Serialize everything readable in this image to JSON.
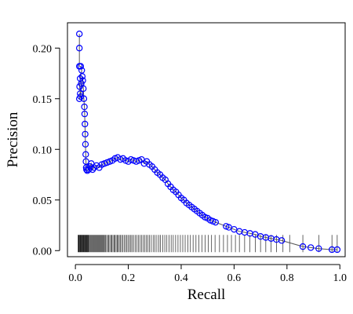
{
  "chart_data": {
    "type": "scatter",
    "title": "",
    "xlabel": "Recall",
    "ylabel": "Precision",
    "xlim": [
      -0.03,
      1.02
    ],
    "ylim": [
      -0.006,
      0.225
    ],
    "xticks": [
      0.0,
      0.2,
      0.4,
      0.6,
      0.8,
      1.0
    ],
    "xtick_labels": [
      "0.0",
      "0.2",
      "0.4",
      "0.6",
      "0.8",
      "1.0"
    ],
    "yticks": [
      0.0,
      0.05,
      0.1,
      0.15,
      0.2
    ],
    "ytick_labels": [
      "0.00",
      "0.05",
      "0.10",
      "0.15",
      "0.20"
    ],
    "grid": false,
    "legend": "none",
    "series": [
      {
        "values": [
          [
            0.015,
            0.214
          ],
          [
            0.015,
            0.2
          ],
          [
            0.015,
            0.182
          ],
          [
            0.02,
            0.182
          ],
          [
            0.024,
            0.178
          ],
          [
            0.018,
            0.17
          ],
          [
            0.016,
            0.162
          ],
          [
            0.018,
            0.155
          ],
          [
            0.015,
            0.15
          ],
          [
            0.02,
            0.152
          ],
          [
            0.022,
            0.165
          ],
          [
            0.026,
            0.172
          ],
          [
            0.028,
            0.168
          ],
          [
            0.03,
            0.16
          ],
          [
            0.032,
            0.15
          ],
          [
            0.034,
            0.142
          ],
          [
            0.035,
            0.135
          ],
          [
            0.036,
            0.125
          ],
          [
            0.037,
            0.115
          ],
          [
            0.038,
            0.105
          ],
          [
            0.039,
            0.095
          ],
          [
            0.04,
            0.088
          ],
          [
            0.041,
            0.082
          ],
          [
            0.042,
            0.08
          ],
          [
            0.045,
            0.079
          ],
          [
            0.05,
            0.08
          ],
          [
            0.055,
            0.083
          ],
          [
            0.06,
            0.086
          ],
          [
            0.065,
            0.08
          ],
          [
            0.07,
            0.082
          ],
          [
            0.08,
            0.084
          ],
          [
            0.09,
            0.082
          ],
          [
            0.1,
            0.085
          ],
          [
            0.11,
            0.086
          ],
          [
            0.12,
            0.087
          ],
          [
            0.13,
            0.088
          ],
          [
            0.14,
            0.089
          ],
          [
            0.15,
            0.091
          ],
          [
            0.16,
            0.092
          ],
          [
            0.17,
            0.09
          ],
          [
            0.18,
            0.091
          ],
          [
            0.19,
            0.089
          ],
          [
            0.2,
            0.088
          ],
          [
            0.21,
            0.09
          ],
          [
            0.22,
            0.089
          ],
          [
            0.23,
            0.088
          ],
          [
            0.24,
            0.089
          ],
          [
            0.25,
            0.09
          ],
          [
            0.26,
            0.086
          ],
          [
            0.27,
            0.088
          ],
          [
            0.28,
            0.085
          ],
          [
            0.29,
            0.083
          ],
          [
            0.3,
            0.08
          ],
          [
            0.31,
            0.077
          ],
          [
            0.32,
            0.075
          ],
          [
            0.33,
            0.072
          ],
          [
            0.34,
            0.07
          ],
          [
            0.35,
            0.066
          ],
          [
            0.36,
            0.063
          ],
          [
            0.37,
            0.06
          ],
          [
            0.38,
            0.058
          ],
          [
            0.39,
            0.055
          ],
          [
            0.4,
            0.052
          ],
          [
            0.41,
            0.05
          ],
          [
            0.42,
            0.047
          ],
          [
            0.43,
            0.045
          ],
          [
            0.44,
            0.043
          ],
          [
            0.45,
            0.041
          ],
          [
            0.46,
            0.039
          ],
          [
            0.47,
            0.037
          ],
          [
            0.48,
            0.035
          ],
          [
            0.49,
            0.033
          ],
          [
            0.5,
            0.032
          ],
          [
            0.51,
            0.03
          ],
          [
            0.52,
            0.029
          ],
          [
            0.53,
            0.028
          ],
          [
            0.57,
            0.024
          ],
          [
            0.58,
            0.023
          ],
          [
            0.6,
            0.021
          ],
          [
            0.62,
            0.019
          ],
          [
            0.64,
            0.018
          ],
          [
            0.66,
            0.017
          ],
          [
            0.68,
            0.016
          ],
          [
            0.7,
            0.014
          ],
          [
            0.72,
            0.013
          ],
          [
            0.74,
            0.012
          ],
          [
            0.76,
            0.011
          ],
          [
            0.78,
            0.01
          ],
          [
            0.86,
            0.004
          ],
          [
            0.89,
            0.003
          ],
          [
            0.92,
            0.002
          ],
          [
            0.97,
            0.001
          ],
          [
            0.99,
            0.001
          ]
        ]
      }
    ],
    "rug_x": [
      0.01,
      0.012,
      0.014,
      0.016,
      0.018,
      0.02,
      0.022,
      0.024,
      0.026,
      0.028,
      0.03,
      0.032,
      0.034,
      0.036,
      0.038,
      0.04,
      0.042,
      0.044,
      0.046,
      0.048,
      0.05,
      0.053,
      0.056,
      0.059,
      0.062,
      0.065,
      0.068,
      0.071,
      0.074,
      0.077,
      0.08,
      0.083,
      0.086,
      0.089,
      0.092,
      0.095,
      0.098,
      0.101,
      0.104,
      0.107,
      0.11,
      0.114,
      0.118,
      0.122,
      0.126,
      0.13,
      0.134,
      0.138,
      0.142,
      0.146,
      0.15,
      0.154,
      0.158,
      0.162,
      0.166,
      0.17,
      0.175,
      0.18,
      0.185,
      0.19,
      0.195,
      0.2,
      0.205,
      0.21,
      0.215,
      0.22,
      0.226,
      0.232,
      0.238,
      0.244,
      0.25,
      0.256,
      0.262,
      0.268,
      0.274,
      0.28,
      0.287,
      0.294,
      0.301,
      0.308,
      0.315,
      0.322,
      0.33,
      0.338,
      0.346,
      0.354,
      0.362,
      0.37,
      0.379,
      0.388,
      0.397,
      0.406,
      0.415,
      0.425,
      0.435,
      0.445,
      0.456,
      0.467,
      0.478,
      0.49,
      0.502,
      0.515,
      0.528,
      0.545,
      0.56,
      0.575,
      0.59,
      0.605,
      0.62,
      0.64,
      0.66,
      0.68,
      0.7,
      0.72,
      0.74,
      0.76,
      0.785,
      0.81,
      0.86,
      0.92,
      0.97,
      0.99
    ]
  }
}
